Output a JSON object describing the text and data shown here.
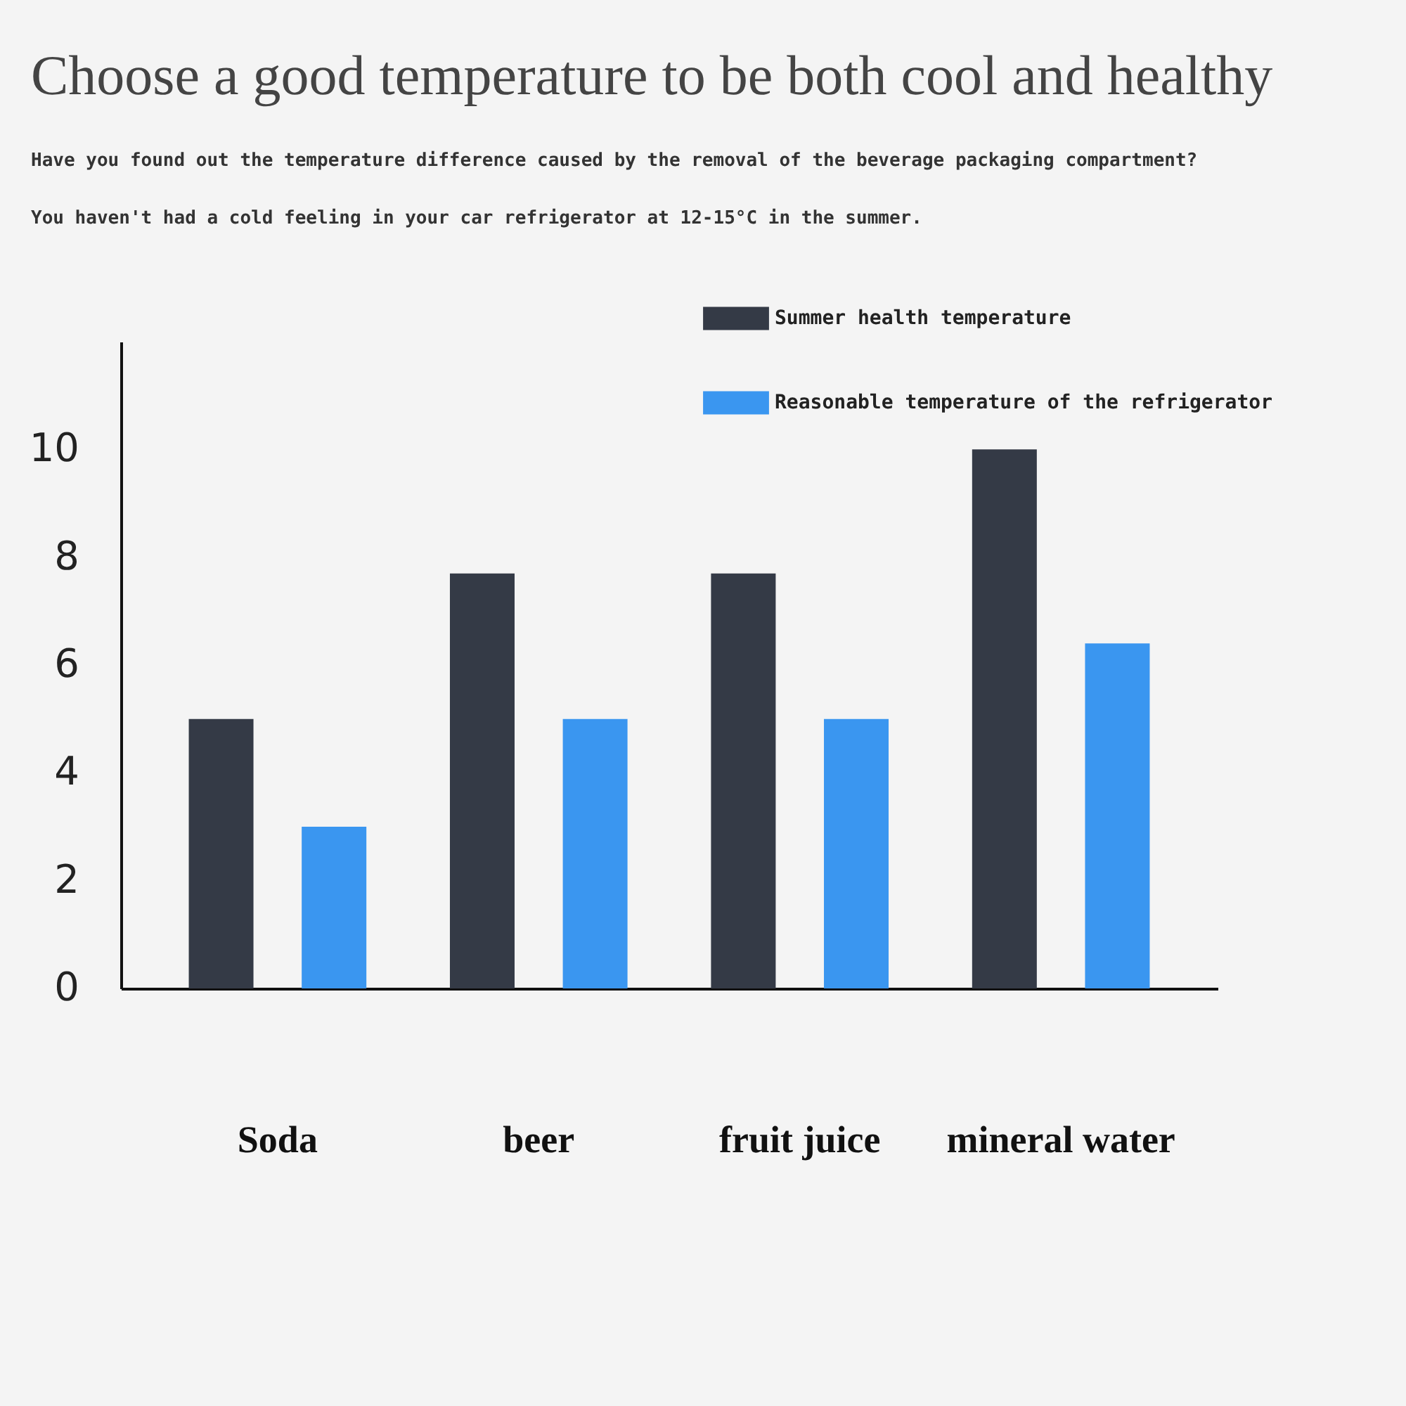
{
  "chart_data": {
    "type": "bar",
    "title": "Choose a good temperature to be both cool and healthy",
    "subtitle": "Have you found out the temperature difference caused by the removal of the beverage packaging compartment?",
    "annotations": [
      "You haven't had a cold feeling in your car refrigerator at 12-15°C in the summer."
    ],
    "categories": [
      "Soda",
      "beer",
      "fruit juice",
      "mineral water"
    ],
    "series": [
      {
        "name": "Summer health temperature",
        "color": "#343a46",
        "values": [
          5,
          7.7,
          7.7,
          10
        ]
      },
      {
        "name": "Reasonable temperature of the refrigerator",
        "color": "#3a96f0",
        "values": [
          3,
          5,
          5,
          6.4
        ]
      }
    ],
    "ylim": [
      0,
      12
    ],
    "yticks": [
      0,
      2,
      4,
      6,
      8,
      10
    ],
    "grid": false,
    "legend": "top right"
  }
}
